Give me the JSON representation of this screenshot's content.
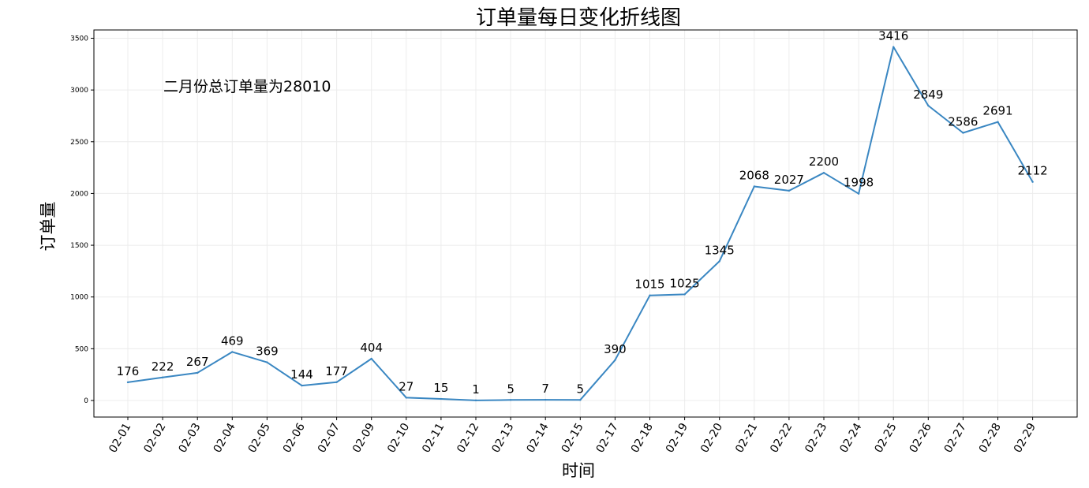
{
  "chart_data": {
    "type": "line",
    "title": "订单量每日变化折线图",
    "xlabel": "时间",
    "ylabel": "订单量",
    "annotation": "二月份总订单量为28010",
    "grid": true,
    "line_color": "#3a87c2",
    "categories": [
      "02-01",
      "02-02",
      "02-03",
      "02-04",
      "02-05",
      "02-06",
      "02-07",
      "02-09",
      "02-10",
      "02-11",
      "02-12",
      "02-13",
      "02-14",
      "02-15",
      "02-17",
      "02-18",
      "02-19",
      "02-20",
      "02-21",
      "02-22",
      "02-23",
      "02-24",
      "02-25",
      "02-26",
      "02-27",
      "02-28",
      "02-29"
    ],
    "values": [
      176,
      222,
      267,
      469,
      369,
      144,
      177,
      404,
      27,
      15,
      1,
      5,
      7,
      5,
      390,
      1015,
      1025,
      1345,
      2068,
      2027,
      2200,
      1998,
      3416,
      2849,
      2586,
      2691,
      2112
    ],
    "yticks": [
      0,
      500,
      1000,
      1500,
      2000,
      2500,
      3000,
      3500
    ],
    "ylim": [
      -160,
      3580
    ]
  }
}
